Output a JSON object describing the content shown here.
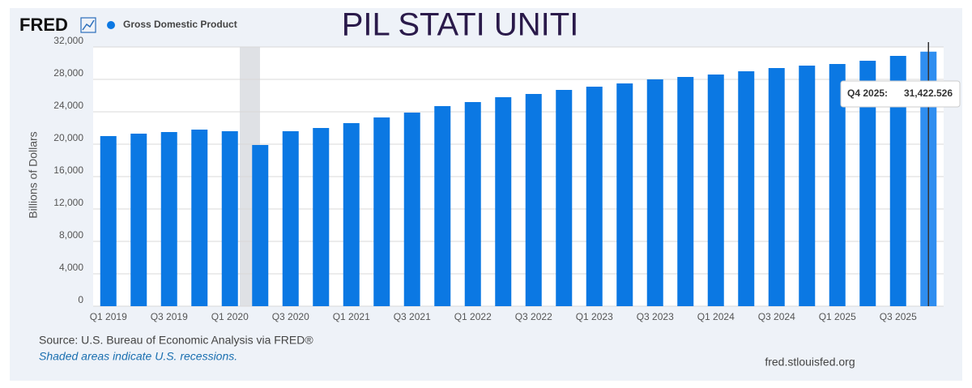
{
  "chart_data": {
    "type": "bar",
    "logo": "FRED",
    "title": "PIL STATI UNITI",
    "y_label": "Billions of Dollars",
    "source": "Source: U.S. Bureau of Economic Analysis via FRED®",
    "note": "Shaded areas indicate U.S. recessions.",
    "site": "fred.stlouisfed.org",
    "categories": [
      "Q1 2019",
      null,
      "Q3 2019",
      null,
      "Q1 2020",
      null,
      "Q3 2020",
      null,
      "Q1 2021",
      null,
      "Q3 2021",
      null,
      "Q1 2022",
      null,
      "Q3 2022",
      null,
      "Q1 2023",
      null,
      "Q3 2023",
      null,
      "Q1 2024",
      null,
      "Q3 2024",
      null,
      "Q1 2025",
      null,
      "Q3 2025",
      null
    ],
    "series": [
      {
        "name": "Gross Domestic Product",
        "color": "#0b78e3",
        "values": [
          21000,
          21300,
          21500,
          21800,
          21600,
          19900,
          21600,
          22000,
          22600,
          23300,
          23900,
          24700,
          25200,
          25800,
          26200,
          26700,
          27100,
          27500,
          28000,
          28300,
          28600,
          29000,
          29400,
          29700,
          29900,
          30300,
          30900,
          31422.526
        ],
        "value_labels": [
          null,
          null,
          null,
          null,
          null,
          null,
          null,
          null,
          null,
          null,
          null,
          null,
          null,
          null,
          null,
          null,
          null,
          null,
          null,
          null,
          null,
          null,
          null,
          null,
          null,
          null,
          null,
          "31,422.526"
        ]
      }
    ],
    "hover_label": "Q4 2025:",
    "hover_color": "#2f8ef0",
    "ylim": [
      0,
      32000
    ],
    "yticks": [
      0,
      {
        "value": 4000,
        "label": "4,000"
      },
      {
        "value": 8000,
        "label": "8,000"
      },
      {
        "value": 12000,
        "label": "12,000"
      },
      {
        "value": 16000,
        "label": "16,000"
      },
      {
        "value": 20000,
        "label": "20,000"
      },
      {
        "value": 24000,
        "label": "24,000"
      },
      {
        "value": 28000,
        "label": "28,000"
      },
      {
        "value": 32000,
        "label": "32,000"
      }
    ],
    "grid": true
  }
}
